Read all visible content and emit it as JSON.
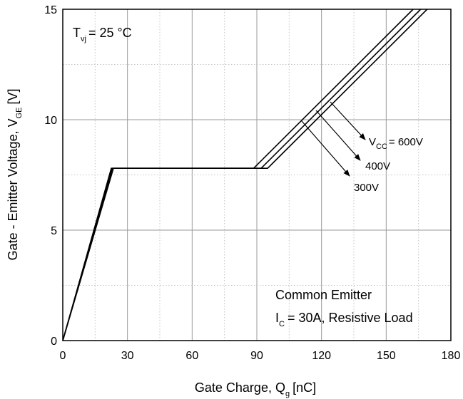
{
  "chart_data": {
    "type": "line",
    "xlabel": "Gate Charge, Q",
    "xlabel_sub": "g",
    "xlabel_unit": "[nC]",
    "ylabel": "Gate - Emitter Voltage, V",
    "ylabel_sub": "GE",
    "ylabel_unit": "[V]",
    "xlim": [
      0,
      180
    ],
    "ylim": [
      0,
      15
    ],
    "xticks": [
      0,
      30,
      60,
      90,
      120,
      150,
      180
    ],
    "yticks": [
      0,
      5,
      10,
      15
    ],
    "grid": true,
    "series": [
      {
        "name": "600V",
        "x": [
          0,
          22.5,
          88.5,
          162.5
        ],
        "y": [
          0,
          7.8,
          7.8,
          15
        ]
      },
      {
        "name": "400V",
        "x": [
          0,
          23.0,
          92.0,
          166.0
        ],
        "y": [
          0,
          7.8,
          7.8,
          15
        ]
      },
      {
        "name": "300V",
        "x": [
          0,
          23.5,
          95.0,
          169.0
        ],
        "y": [
          0,
          7.8,
          7.8,
          15
        ]
      }
    ],
    "annotations": {
      "tvj_main": "T",
      "tvj_sub": "vj",
      "tvj_value": "= 25 °C",
      "common_emitter": "Common Emitter",
      "ic_main": "I",
      "ic_sub": "C",
      "ic_value": "= 30A, Resistive Load",
      "vcc_main": "V",
      "vcc_sub": "CC",
      "vcc_value": "= 600V",
      "label_400": "400V",
      "label_300": "300V"
    }
  }
}
